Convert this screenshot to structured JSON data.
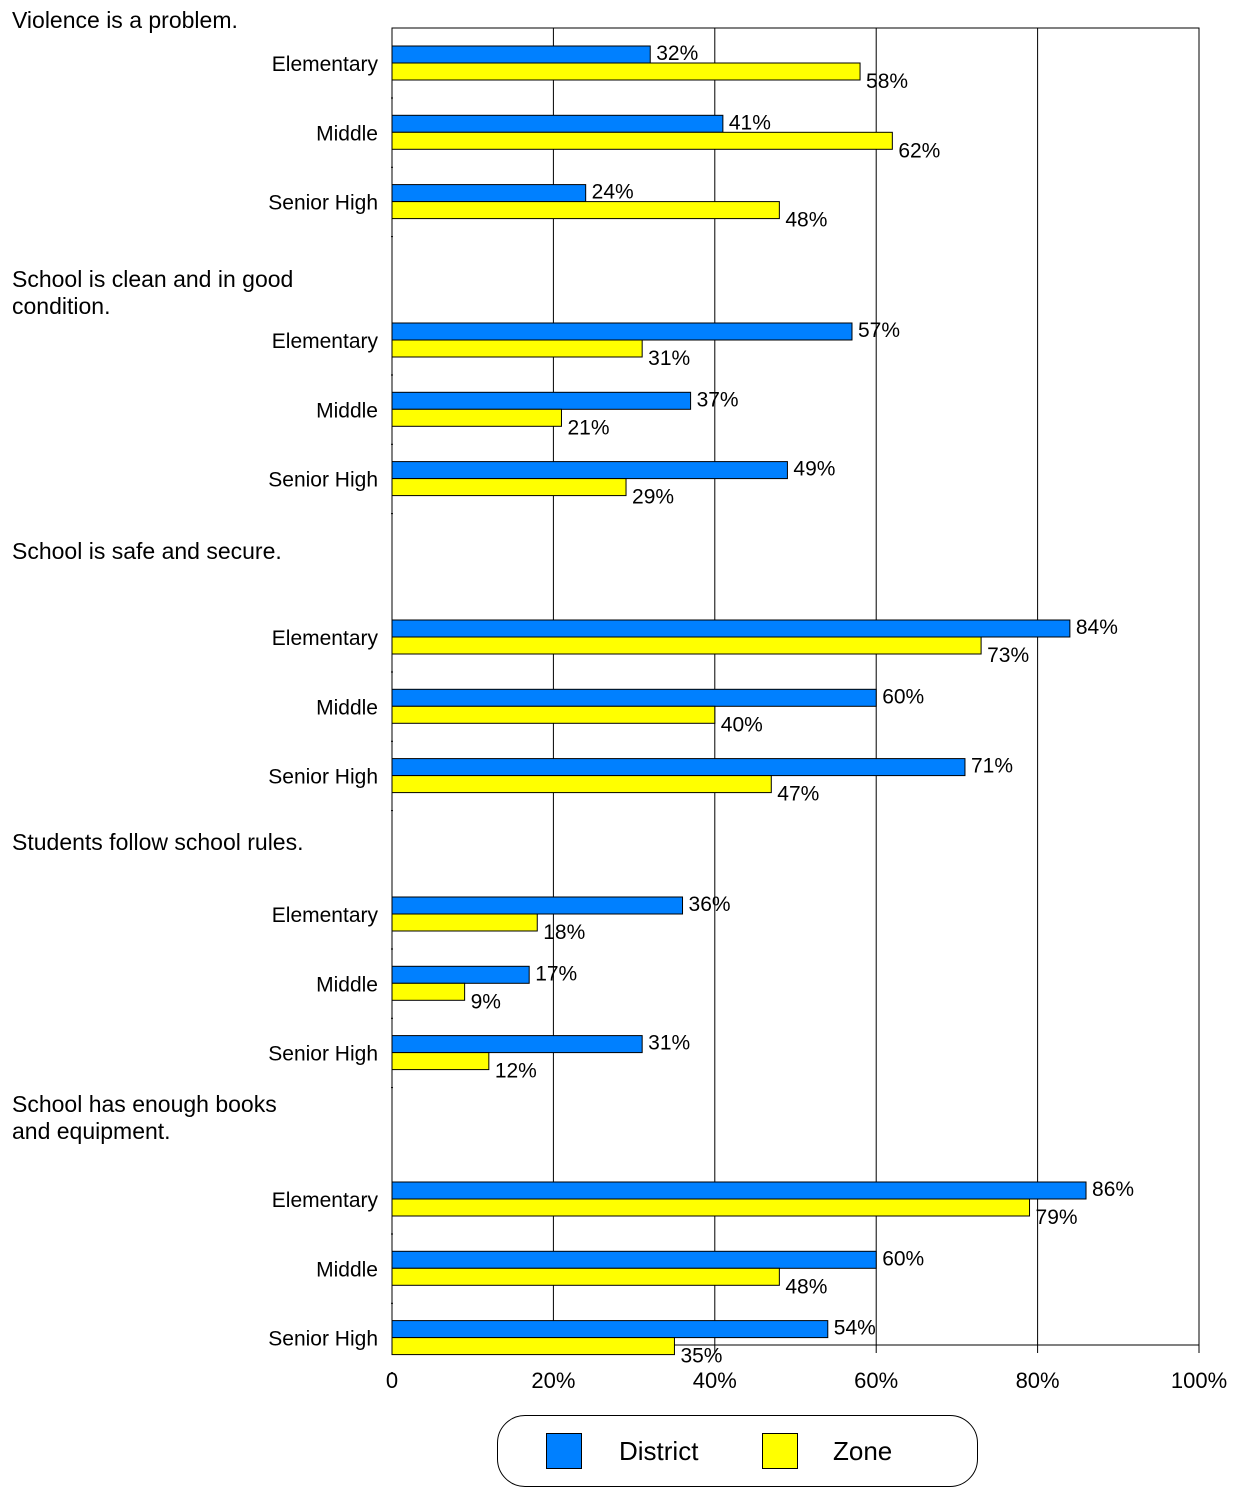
{
  "chart_data": {
    "type": "bar",
    "orientation": "horizontal",
    "xlim": [
      0,
      100
    ],
    "x_ticks": [
      "0",
      "20%",
      "40%",
      "60%",
      "80%",
      "100%"
    ],
    "grid": true,
    "legend_position": "bottom",
    "series": [
      {
        "name": "District",
        "color": "#0080FF"
      },
      {
        "name": "Zone",
        "color": "#FFFF00"
      }
    ],
    "groups": [
      {
        "title": "Violence is a problem.",
        "categories": [
          {
            "label": "Elementary",
            "District": 32,
            "Zone": 58
          },
          {
            "label": "Middle",
            "District": 41,
            "Zone": 62
          },
          {
            "label": "Senior High",
            "District": 24,
            "Zone": 48
          }
        ]
      },
      {
        "title": "School is clean and in good condition.",
        "categories": [
          {
            "label": "Elementary",
            "District": 57,
            "Zone": 31
          },
          {
            "label": "Middle",
            "District": 37,
            "Zone": 21
          },
          {
            "label": "Senior High",
            "District": 49,
            "Zone": 29
          }
        ]
      },
      {
        "title": "School is safe and secure.",
        "categories": [
          {
            "label": "Elementary",
            "District": 84,
            "Zone": 73
          },
          {
            "label": "Middle",
            "District": 60,
            "Zone": 40
          },
          {
            "label": "Senior High",
            "District": 71,
            "Zone": 47
          }
        ]
      },
      {
        "title": "Students follow school rules.",
        "categories": [
          {
            "label": "Elementary",
            "District": 36,
            "Zone": 18
          },
          {
            "label": "Middle",
            "District": 17,
            "Zone": 9
          },
          {
            "label": "Senior High",
            "District": 31,
            "Zone": 12
          }
        ]
      },
      {
        "title": "School has enough books and equipment.",
        "categories": [
          {
            "label": "Elementary",
            "District": 86,
            "Zone": 79
          },
          {
            "label": "Middle",
            "District": 60,
            "Zone": 48
          },
          {
            "label": "Senior High",
            "District": 54,
            "Zone": 35
          }
        ]
      }
    ]
  }
}
